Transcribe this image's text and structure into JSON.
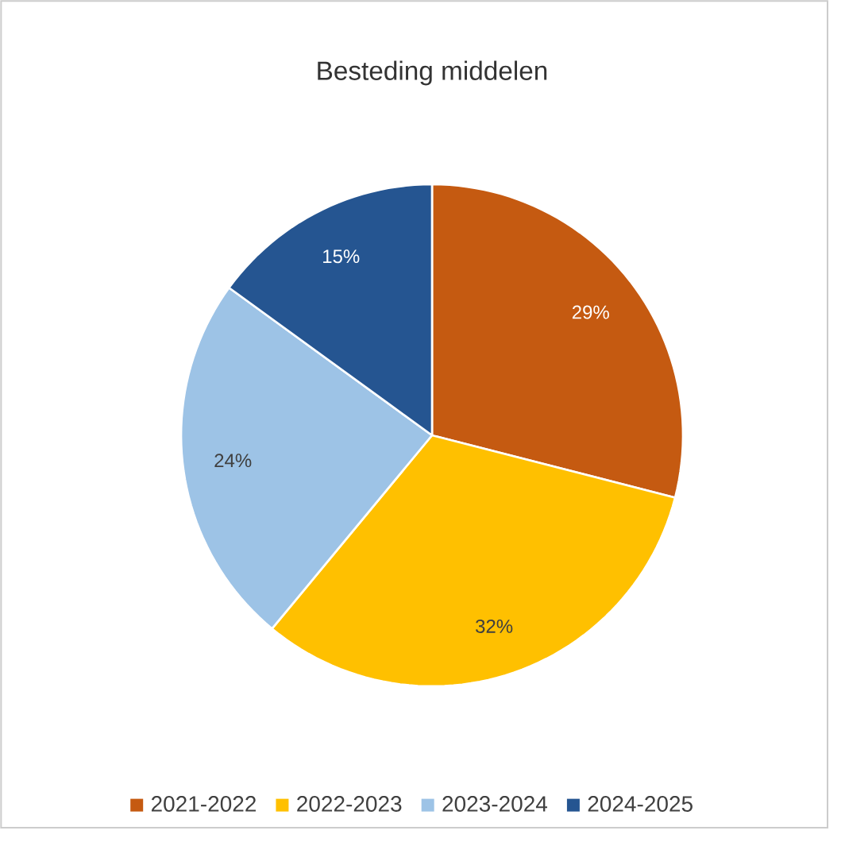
{
  "chart_data": {
    "type": "pie",
    "title": "Besteding middelen",
    "categories": [
      "2021-2022",
      "2022-2023",
      "2023-2024",
      "2024-2025"
    ],
    "values": [
      29,
      32,
      24,
      15
    ],
    "colors": [
      "#c55a11",
      "#ffc000",
      "#9dc3e6",
      "#255591"
    ],
    "value_labels": [
      "29%",
      "32%",
      "24%",
      "15%"
    ],
    "legend": "bottom"
  }
}
